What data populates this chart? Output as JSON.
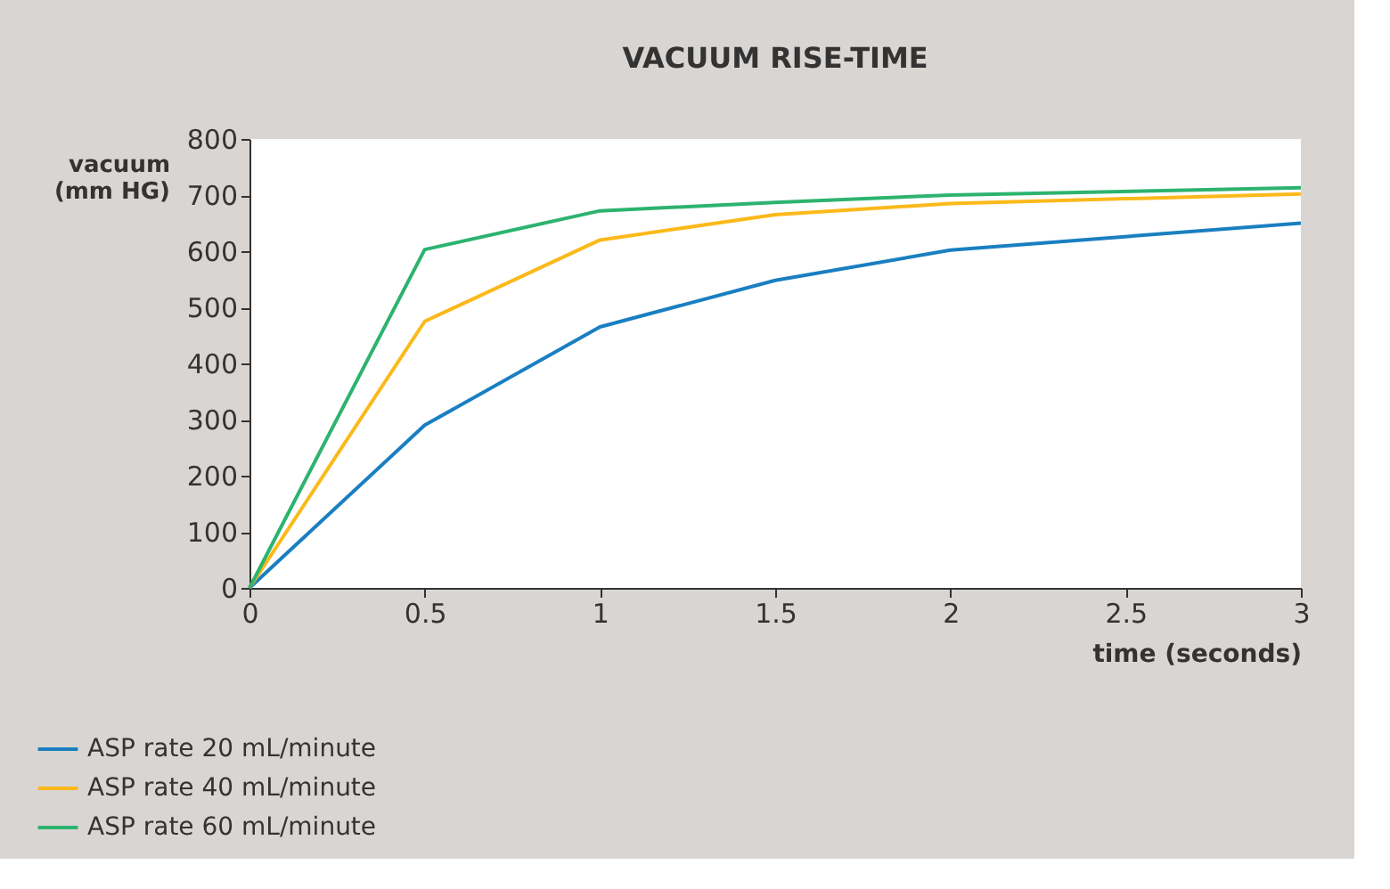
{
  "chart_data": {
    "type": "line",
    "title": "VACUUM RISE-TIME",
    "xlabel": "time (seconds)",
    "ylabel": "vacuum\n(mm HG)",
    "x": [
      0,
      0.5,
      1,
      1.5,
      2,
      3
    ],
    "series": [
      {
        "name": "ASP rate 20 mL/minute",
        "color": "#1a7fc1",
        "values": [
          0,
          290,
          465,
          548,
          602,
          650
        ]
      },
      {
        "name": "ASP rate 40 mL/minute",
        "color": "#fbb91a",
        "values": [
          0,
          475,
          620,
          665,
          685,
          702
        ]
      },
      {
        "name": "ASP rate 60 mL/minute",
        "color": "#2db36f",
        "values": [
          0,
          603,
          672,
          687,
          700,
          713
        ]
      }
    ],
    "xlim": [
      0,
      3
    ],
    "xticks": [
      0,
      0.5,
      1,
      1.5,
      2,
      2.5,
      3
    ],
    "ylim": [
      0,
      800
    ],
    "yticks": [
      0,
      100,
      200,
      300,
      400,
      500,
      600,
      700,
      800
    ],
    "grid": false,
    "legend": "bottom left",
    "marker": "none",
    "line_style": "solid"
  }
}
